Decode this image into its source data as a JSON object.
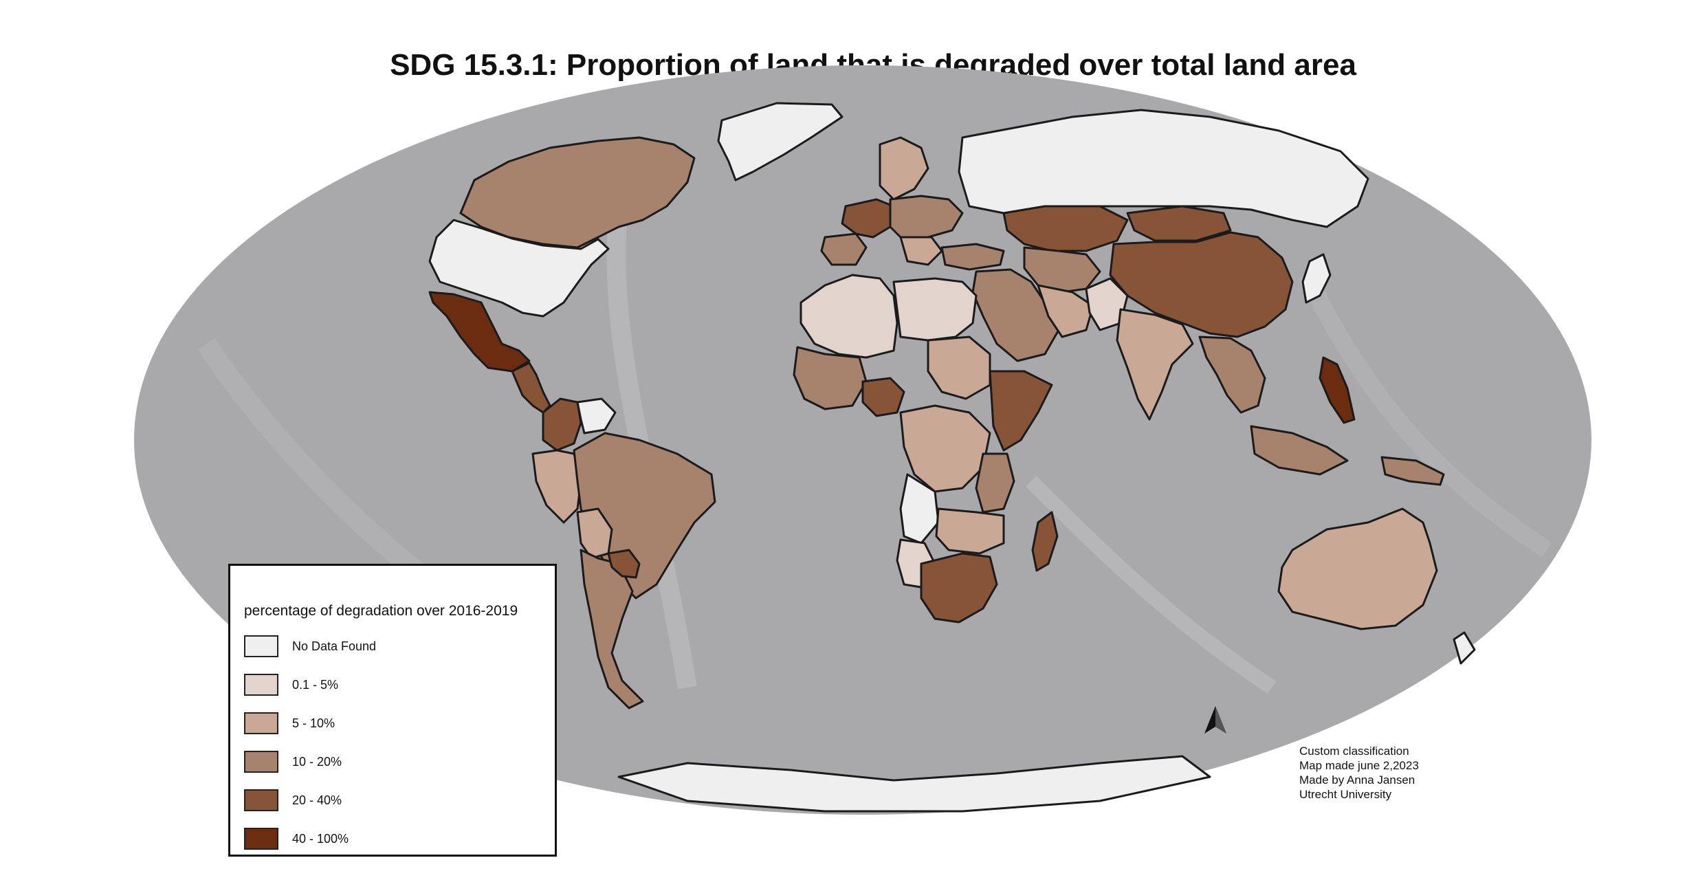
{
  "title": "SDG 15.3.1: Proportion of land that is degraded over total land area",
  "colors": {
    "ocean": "#a9a9ac",
    "no_data": "#efefef",
    "c1": "#e2d4cc",
    "c2": "#c9a995",
    "c3": "#a7826c",
    "c4": "#875438",
    "c5": "#6b2c10"
  },
  "legend": {
    "title": "percentage of degradation over 2016-2019",
    "items": [
      {
        "label": "No Data Found",
        "color": "#efefef"
      },
      {
        "label": "0.1 - 5%",
        "color": "#e2d4cc"
      },
      {
        "label": "5 - 10%",
        "color": "#c9a995"
      },
      {
        "label": "10 - 20%",
        "color": "#a7826c"
      },
      {
        "label": "20 - 40%",
        "color": "#875438"
      },
      {
        "label": "40 - 100%",
        "color": "#6b2c10"
      }
    ]
  },
  "credits": {
    "line1": "Custom classification",
    "line2": "Map made june 2,2023",
    "line3": "Made by Anna Jansen",
    "line4": "Utrecht University"
  },
  "north_arrow": "north-arrow-icon"
}
